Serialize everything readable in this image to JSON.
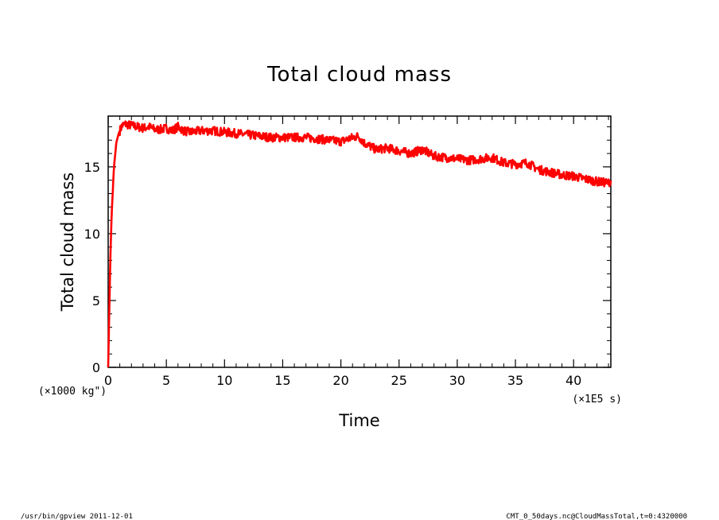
{
  "chart_data": {
    "type": "line",
    "title": "Total cloud mass",
    "xlabel": "Time",
    "ylabel": "Total cloud mass",
    "x_unit": "(×1E5 s)",
    "y_unit": "(×1000 kg\")",
    "xlim": [
      0,
      43.2
    ],
    "ylim": [
      0,
      18.8
    ],
    "x_ticks": [
      0,
      5,
      10,
      15,
      20,
      25,
      30,
      35,
      40
    ],
    "y_ticks": [
      0,
      5,
      10,
      15
    ],
    "x_tick_labels": [
      "0",
      "5",
      "10",
      "15",
      "20",
      "25",
      "30",
      "35",
      "40"
    ],
    "y_tick_labels": [
      "0",
      "5",
      "10",
      "15"
    ],
    "grid": false,
    "legend": "none",
    "color": "#ff0000",
    "series": [
      {
        "x": [
          0,
          0.1,
          0.2,
          0.3,
          0.5,
          0.7,
          0.9,
          1.2,
          1.5,
          2,
          2.5,
          3,
          3.5,
          4,
          4.5,
          5,
          5.5,
          6,
          6.5,
          7,
          8,
          9,
          10,
          11,
          12,
          13,
          14,
          15,
          16,
          17,
          18,
          19,
          20,
          21,
          21.5,
          22,
          23,
          24,
          25,
          26,
          27,
          28,
          29,
          30,
          31,
          32,
          33,
          34,
          35,
          36,
          37,
          38,
          39,
          40,
          41,
          42,
          43,
          43.2
        ],
        "y": [
          0,
          4.5,
          8.5,
          11.5,
          15,
          16.8,
          17.5,
          18.1,
          18.2,
          18.1,
          18.0,
          17.9,
          18.0,
          17.8,
          17.8,
          17.9,
          17.7,
          18.0,
          17.7,
          17.6,
          17.7,
          17.7,
          17.6,
          17.5,
          17.4,
          17.3,
          17.2,
          17.2,
          17.2,
          17.2,
          17.1,
          17.0,
          16.9,
          17.2,
          17.3,
          16.8,
          16.3,
          16.4,
          16.2,
          16.0,
          16.3,
          15.8,
          15.7,
          15.6,
          15.5,
          15.6,
          15.7,
          15.3,
          15.2,
          15.3,
          14.8,
          14.6,
          14.4,
          14.3,
          14.1,
          13.9,
          13.8,
          14.0
        ]
      }
    ]
  },
  "footer": {
    "left": "/usr/bin/gpview  2011-12-01",
    "right": "CMT_0_50days.nc@CloudMassTotal,t=0:4320000"
  }
}
